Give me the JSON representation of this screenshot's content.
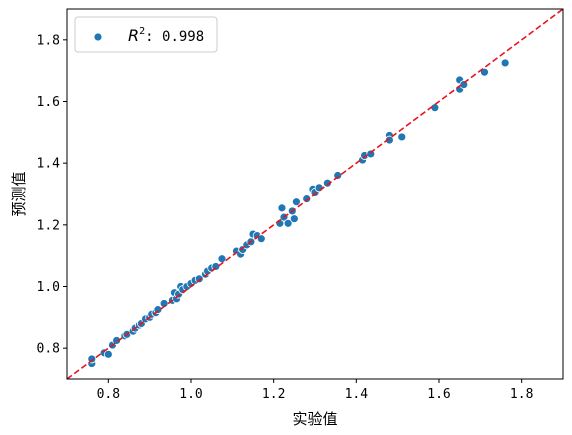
{
  "chart_data": {
    "type": "scatter",
    "title": "",
    "xlabel": "实验值",
    "ylabel": "预测值",
    "xlim": [
      0.7,
      1.9
    ],
    "ylim": [
      0.7,
      1.9
    ],
    "xticks": [
      0.8,
      1.0,
      1.2,
      1.4,
      1.6,
      1.8
    ],
    "yticks": [
      0.8,
      1.0,
      1.2,
      1.4,
      1.6,
      1.8
    ],
    "tick_labels_x": [
      "0.8",
      "1.0",
      "1.2",
      "1.4",
      "1.6",
      "1.8"
    ],
    "tick_labels_y": [
      "0.8",
      "1.0",
      "1.2",
      "1.4",
      "1.6",
      "1.8"
    ],
    "grid": false,
    "legend": {
      "position": "top-left",
      "entries": [
        {
          "label_prefix": "R",
          "label_sup": "2",
          "label_suffix": ": 0.998"
        }
      ]
    },
    "reference_line": {
      "style": "dashed",
      "color": "#e8141b",
      "slope": 1,
      "intercept": 0
    },
    "point_color": "#1f77b4",
    "points": [
      [
        0.76,
        0.75
      ],
      [
        0.76,
        0.765
      ],
      [
        0.79,
        0.785
      ],
      [
        0.8,
        0.78
      ],
      [
        0.81,
        0.81
      ],
      [
        0.82,
        0.825
      ],
      [
        0.84,
        0.84
      ],
      [
        0.845,
        0.845
      ],
      [
        0.86,
        0.855
      ],
      [
        0.865,
        0.865
      ],
      [
        0.875,
        0.875
      ],
      [
        0.88,
        0.88
      ],
      [
        0.89,
        0.895
      ],
      [
        0.9,
        0.9
      ],
      [
        0.905,
        0.91
      ],
      [
        0.915,
        0.915
      ],
      [
        0.92,
        0.925
      ],
      [
        0.935,
        0.945
      ],
      [
        0.955,
        0.955
      ],
      [
        0.96,
        0.98
      ],
      [
        0.965,
        0.96
      ],
      [
        0.97,
        0.975
      ],
      [
        0.975,
        1.0
      ],
      [
        0.98,
        0.99
      ],
      [
        0.99,
        1.0
      ],
      [
        1.0,
        1.01
      ],
      [
        1.01,
        1.02
      ],
      [
        1.02,
        1.025
      ],
      [
        1.035,
        1.04
      ],
      [
        1.04,
        1.05
      ],
      [
        1.05,
        1.06
      ],
      [
        1.06,
        1.065
      ],
      [
        1.075,
        1.09
      ],
      [
        1.11,
        1.115
      ],
      [
        1.12,
        1.105
      ],
      [
        1.125,
        1.12
      ],
      [
        1.135,
        1.135
      ],
      [
        1.145,
        1.145
      ],
      [
        1.15,
        1.17
      ],
      [
        1.16,
        1.165
      ],
      [
        1.17,
        1.155
      ],
      [
        1.215,
        1.205
      ],
      [
        1.22,
        1.255
      ],
      [
        1.225,
        1.225
      ],
      [
        1.235,
        1.205
      ],
      [
        1.245,
        1.245
      ],
      [
        1.25,
        1.22
      ],
      [
        1.255,
        1.275
      ],
      [
        1.28,
        1.285
      ],
      [
        1.295,
        1.315
      ],
      [
        1.3,
        1.305
      ],
      [
        1.31,
        1.32
      ],
      [
        1.33,
        1.335
      ],
      [
        1.355,
        1.36
      ],
      [
        1.415,
        1.41
      ],
      [
        1.42,
        1.425
      ],
      [
        1.435,
        1.43
      ],
      [
        1.48,
        1.49
      ],
      [
        1.48,
        1.475
      ],
      [
        1.51,
        1.485
      ],
      [
        1.59,
        1.58
      ],
      [
        1.65,
        1.67
      ],
      [
        1.65,
        1.64
      ],
      [
        1.66,
        1.655
      ],
      [
        1.71,
        1.695
      ],
      [
        1.76,
        1.725
      ]
    ]
  }
}
